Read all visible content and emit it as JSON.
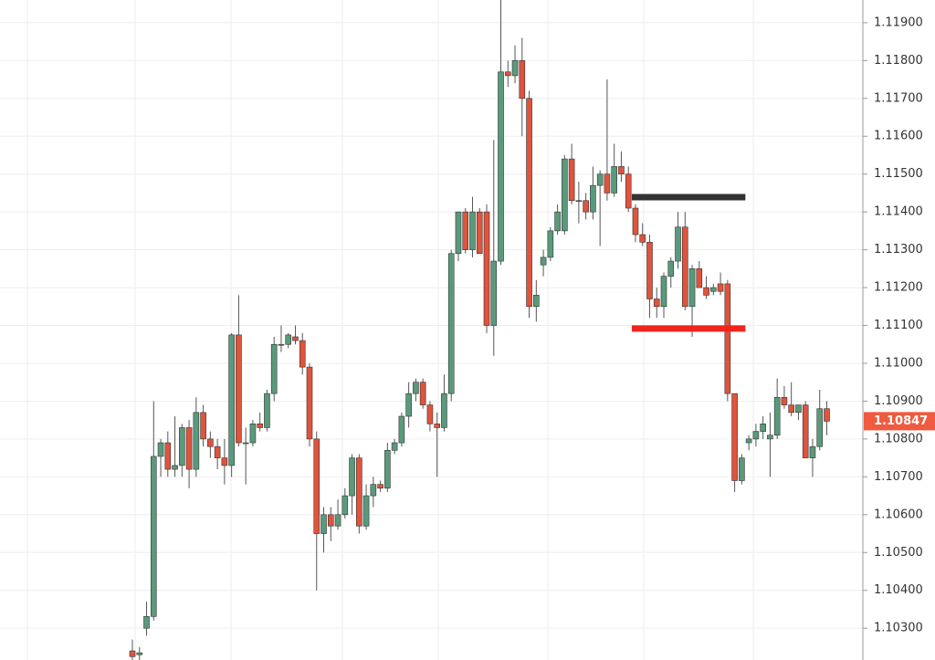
{
  "chart_data": {
    "type": "candlestick",
    "ylim": [
      1.10216,
      1.1196
    ],
    "yticks": [
      {
        "value": 1.103,
        "label": "1.10300"
      },
      {
        "value": 1.104,
        "label": "1.10400"
      },
      {
        "value": 1.105,
        "label": "1.10500"
      },
      {
        "value": 1.106,
        "label": "1.10600"
      },
      {
        "value": 1.107,
        "label": "1.10700"
      },
      {
        "value": 1.108,
        "label": "1.10800"
      },
      {
        "value": 1.109,
        "label": "1.10900"
      },
      {
        "value": 1.11,
        "label": "1.11000"
      },
      {
        "value": 1.111,
        "label": "1.11100"
      },
      {
        "value": 1.112,
        "label": "1.11200"
      },
      {
        "value": 1.113,
        "label": "1.11300"
      },
      {
        "value": 1.114,
        "label": "1.11400"
      },
      {
        "value": 1.115,
        "label": "1.11500"
      },
      {
        "value": 1.116,
        "label": "1.11600"
      },
      {
        "value": 1.117,
        "label": "1.11700"
      },
      {
        "value": 1.118,
        "label": "1.11800"
      },
      {
        "value": 1.119,
        "label": "1.11900"
      }
    ],
    "grid": true,
    "up_color": "#5a9a7c",
    "down_color": "#e0533c",
    "wick_color": "#555555",
    "open": [
      1.1024,
      1.1023,
      1.103,
      1.10331,
      1.10754,
      1.1079,
      1.1072,
      1.1073,
      1.1083,
      1.1072,
      1.1087,
      1.108,
      1.1078,
      1.1075,
      1.1073,
      1.11075,
      1.1079,
      1.1079,
      1.1084,
      1.1083,
      1.1092,
      1.1105,
      1.1105,
      1.1107,
      1.1106,
      1.1099,
      1.108,
      1.1055,
      1.106,
      1.1057,
      1.106,
      1.1065,
      1.1075,
      1.1057,
      1.1065,
      1.1068,
      1.1067,
      1.1077,
      1.1079,
      1.1086,
      1.1092,
      1.1095,
      1.1089,
      1.1084,
      1.1083,
      1.1092,
      1.1129,
      1.114,
      1.113,
      1.114,
      1.114,
      1.111,
      1.1127,
      1.1177,
      1.1176,
      1.118,
      1.117,
      1.1115,
      1.1126,
      1.1128,
      1.1135,
      1.1135,
      1.1154,
      1.1143,
      1.1143,
      1.114,
      1.1147,
      1.115,
      1.1145,
      1.1152,
      1.115,
      1.1141,
      1.1134,
      1.1132,
      1.1117,
      1.1115,
      1.1123,
      1.1127,
      1.1136,
      1.1115,
      1.1125,
      1.112,
      1.1119,
      1.1121,
      1.1121,
      1.1092,
      1.1069,
      1.1079,
      1.108,
      1.1082,
      1.108,
      1.1081,
      1.1091,
      1.1089,
      1.1087,
      1.1089,
      1.1075,
      1.1078,
      1.1088
    ],
    "high": [
      1.1027,
      1.1025,
      1.1037,
      1.109,
      1.108,
      1.1082,
      1.1086,
      1.1084,
      1.1085,
      1.1091,
      1.1089,
      1.1082,
      1.108,
      1.108,
      1.1108,
      1.1118,
      1.1083,
      1.1085,
      1.1087,
      1.1093,
      1.1107,
      1.111,
      1.1108,
      1.111,
      1.1108,
      1.11,
      1.1082,
      1.1062,
      1.1062,
      1.1064,
      1.1067,
      1.1076,
      1.1076,
      1.1068,
      1.107,
      1.1069,
      1.1079,
      1.108,
      1.1087,
      1.1095,
      1.1096,
      1.1096,
      1.109,
      1.1087,
      1.1097,
      1.113,
      1.114,
      1.1141,
      1.1144,
      1.1141,
      1.1142,
      1.1159,
      1.1196,
      1.118,
      1.1184,
      1.1186,
      1.1172,
      1.1122,
      1.113,
      1.1136,
      1.1142,
      1.1155,
      1.1158,
      1.1148,
      1.1145,
      1.1152,
      1.1151,
      1.1175,
      1.1158,
      1.1156,
      1.1152,
      1.1142,
      1.1137,
      1.1134,
      1.112,
      1.1124,
      1.1128,
      1.114,
      1.114,
      1.1126,
      1.1127,
      1.1123,
      1.1121,
      1.1124,
      1.1122,
      1.1092,
      1.1076,
      1.1081,
      1.1084,
      1.1086,
      1.1087,
      1.1096,
      1.1094,
      1.1095,
      1.1089,
      1.109,
      1.108,
      1.1093,
      1.109
    ],
    "low": [
      1.10216,
      1.10216,
      1.1028,
      1.1032,
      1.107,
      1.107,
      1.107,
      1.107,
      1.1067,
      1.107,
      1.1078,
      1.1075,
      1.1072,
      1.1068,
      1.107,
      1.1078,
      1.1068,
      1.1078,
      1.1082,
      1.1082,
      1.109,
      1.1103,
      1.1104,
      1.1105,
      1.1097,
      1.1078,
      1.104,
      1.105,
      1.1053,
      1.1056,
      1.1059,
      1.106,
      1.1055,
      1.1056,
      1.1062,
      1.1066,
      1.1066,
      1.1076,
      1.1078,
      1.1083,
      1.109,
      1.1088,
      1.1082,
      1.107,
      1.1082,
      1.109,
      1.1127,
      1.1129,
      1.1128,
      1.1129,
      1.1108,
      1.1102,
      1.1126,
      1.1173,
      1.1174,
      1.116,
      1.1112,
      1.1111,
      1.1123,
      1.1127,
      1.1134,
      1.1134,
      1.1142,
      1.1137,
      1.1138,
      1.1138,
      1.1131,
      1.1143,
      1.1144,
      1.1148,
      1.114,
      1.1132,
      1.1131,
      1.1112,
      1.1112,
      1.1112,
      1.112,
      1.1125,
      1.1114,
      1.1107,
      1.112,
      1.1117,
      1.1118,
      1.1118,
      1.109,
      1.1066,
      1.1068,
      1.1077,
      1.1078,
      1.108,
      1.107,
      1.108,
      1.1088,
      1.1086,
      1.1085,
      1.1075,
      1.107,
      1.1077,
      1.1081
    ],
    "close": [
      1.10225,
      1.10235,
      1.10331,
      1.10754,
      1.1079,
      1.1072,
      1.1073,
      1.1083,
      1.1072,
      1.1087,
      1.108,
      1.1078,
      1.1075,
      1.1073,
      1.11075,
      1.1079,
      1.1079,
      1.1084,
      1.1083,
      1.1092,
      1.1105,
      1.1105,
      1.11075,
      1.1106,
      1.1099,
      1.108,
      1.1055,
      1.106,
      1.1057,
      1.106,
      1.1065,
      1.1075,
      1.1057,
      1.1065,
      1.1068,
      1.1067,
      1.1077,
      1.1079,
      1.1086,
      1.1092,
      1.1095,
      1.1089,
      1.1084,
      1.1083,
      1.1092,
      1.1129,
      1.114,
      1.113,
      1.114,
      1.1129,
      1.111,
      1.1127,
      1.1177,
      1.1176,
      1.118,
      1.117,
      1.1115,
      1.1118,
      1.1128,
      1.1135,
      1.114,
      1.1154,
      1.1143,
      1.1143,
      1.114,
      1.1147,
      1.115,
      1.1145,
      1.1152,
      1.115,
      1.1141,
      1.1134,
      1.1132,
      1.1117,
      1.1115,
      1.1123,
      1.1127,
      1.1136,
      1.1115,
      1.1125,
      1.112,
      1.1118,
      1.112,
      1.1119,
      1.1092,
      1.1069,
      1.1075,
      1.108,
      1.1082,
      1.1084,
      1.1081,
      1.1091,
      1.1089,
      1.1087,
      1.1089,
      1.1075,
      1.1078,
      1.1088,
      1.10847
    ],
    "levels": [
      {
        "value": 1.11439,
        "color": "#333333",
        "start_index": 71,
        "end_index": 86
      },
      {
        "value": 1.11092,
        "color": "#f2231d",
        "start_index": 71,
        "end_index": 86
      }
    ],
    "last_price": 1.10847,
    "last_price_color": "#ef5a40"
  }
}
